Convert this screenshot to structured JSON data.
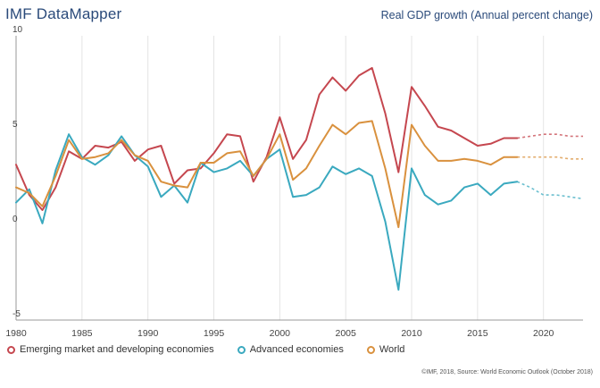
{
  "header": {
    "brand": "IMF DataMapper",
    "subtitle": "Real GDP growth (Annual percent change)"
  },
  "footer": {
    "source": "©IMF, 2018, Source: World Economic Outlook (October 2018)"
  },
  "colors": {
    "emerging": "#c5474f",
    "advanced": "#3aa9bf",
    "world": "#d9913e",
    "grid": "#e4e4e4",
    "axis": "#999999"
  },
  "chart_data": {
    "type": "line",
    "x_ticks": [
      1980,
      1985,
      1990,
      1995,
      2000,
      2005,
      2010,
      2015,
      2020
    ],
    "y_ticks": [
      -5,
      0,
      5,
      10
    ],
    "xlim": [
      1980,
      2023
    ],
    "ylim": [
      -5,
      10
    ],
    "grid": "vertical",
    "forecast_from": 2018,
    "legend_position": "bottom",
    "series": [
      {
        "name": "Emerging market and developing economies",
        "color_key": "emerging",
        "x": [
          1980,
          1981,
          1982,
          1983,
          1984,
          1985,
          1986,
          1987,
          1988,
          1989,
          1990,
          1991,
          1992,
          1993,
          1994,
          1995,
          1996,
          1997,
          1998,
          1999,
          2000,
          2001,
          2002,
          2003,
          2004,
          2005,
          2006,
          2007,
          2008,
          2009,
          2010,
          2011,
          2012,
          2013,
          2014,
          2015,
          2016,
          2017,
          2018,
          2019,
          2020,
          2021,
          2022,
          2023
        ],
        "values": [
          3.2,
          1.6,
          0.8,
          2.0,
          3.9,
          3.5,
          4.2,
          4.1,
          4.4,
          3.4,
          4.0,
          4.2,
          2.2,
          2.9,
          3.0,
          3.8,
          4.8,
          4.7,
          2.3,
          3.6,
          5.7,
          3.5,
          4.5,
          6.9,
          7.8,
          7.1,
          7.9,
          8.3,
          5.9,
          2.8,
          7.3,
          6.3,
          5.2,
          5.0,
          4.6,
          4.2,
          4.3,
          4.6,
          4.6,
          4.7,
          4.8,
          4.8,
          4.7,
          4.7
        ]
      },
      {
        "name": "Advanced economies",
        "color_key": "advanced",
        "x": [
          1980,
          1981,
          1982,
          1983,
          1984,
          1985,
          1986,
          1987,
          1988,
          1989,
          1990,
          1991,
          1992,
          1993,
          1994,
          1995,
          1996,
          1997,
          1998,
          1999,
          2000,
          2001,
          2002,
          2003,
          2004,
          2005,
          2006,
          2007,
          2008,
          2009,
          2010,
          2011,
          2012,
          2013,
          2014,
          2015,
          2016,
          2017,
          2018,
          2019,
          2020,
          2021,
          2022,
          2023
        ],
        "values": [
          1.2,
          1.9,
          0.1,
          2.9,
          4.8,
          3.6,
          3.2,
          3.7,
          4.7,
          3.7,
          3.1,
          1.5,
          2.1,
          1.2,
          3.3,
          2.8,
          3.0,
          3.4,
          2.6,
          3.5,
          4.0,
          1.5,
          1.6,
          2.0,
          3.1,
          2.7,
          3.0,
          2.6,
          0.2,
          -3.4,
          3.0,
          1.6,
          1.1,
          1.3,
          2.0,
          2.2,
          1.6,
          2.2,
          2.3,
          2.0,
          1.6,
          1.6,
          1.5,
          1.4
        ]
      },
      {
        "name": "World",
        "color_key": "world",
        "x": [
          1980,
          1981,
          1982,
          1983,
          1984,
          1985,
          1986,
          1987,
          1988,
          1989,
          1990,
          1991,
          1992,
          1993,
          1994,
          1995,
          1996,
          1997,
          1998,
          1999,
          2000,
          2001,
          2002,
          2003,
          2004,
          2005,
          2006,
          2007,
          2008,
          2009,
          2010,
          2011,
          2012,
          2013,
          2014,
          2015,
          2016,
          2017,
          2018,
          2019,
          2020,
          2021,
          2022,
          2023
        ],
        "values": [
          2.0,
          1.7,
          1.0,
          2.6,
          4.5,
          3.5,
          3.6,
          3.8,
          4.5,
          3.7,
          3.4,
          2.3,
          2.1,
          2.0,
          3.3,
          3.3,
          3.8,
          3.9,
          2.6,
          3.5,
          4.8,
          2.4,
          3.0,
          4.2,
          5.3,
          4.8,
          5.4,
          5.5,
          3.0,
          -0.1,
          5.3,
          4.2,
          3.4,
          3.4,
          3.5,
          3.4,
          3.2,
          3.6,
          3.6,
          3.6,
          3.6,
          3.6,
          3.5,
          3.5
        ]
      }
    ]
  }
}
